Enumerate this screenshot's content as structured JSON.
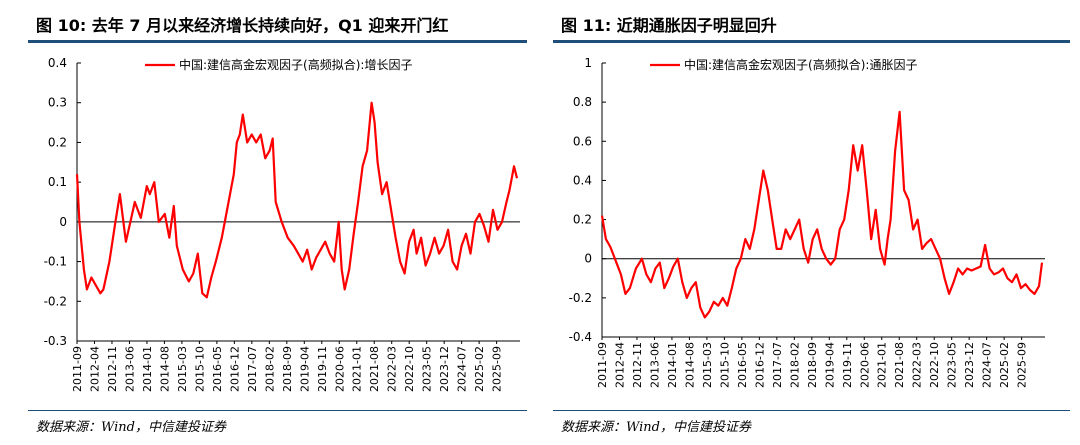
{
  "source_note": "数据来源：Wind，中信建投证券",
  "charts": [
    {
      "figure_title": "图 10: 去年 7 月以来经济增长持续向好，Q1 迎来开门红",
      "source": "数据来源：Wind，中信建投证券",
      "legend": "中国:建信高金宏观因子(高频拟合):增长因子"
    },
    {
      "figure_title": "图 11: 近期通胀因子明显回升",
      "source": "数据来源：Wind，中信建投证券",
      "legend": "中国:建信高金宏观因子(高频拟合):通胀因子"
    }
  ],
  "chart_data": [
    {
      "type": "line",
      "title": "图 10: 去年 7 月以来经济增长持续向好，Q1 迎来开门红",
      "series": [
        {
          "name": "中国:建信高金宏观因子(高频拟合):增长因子",
          "color": "#ff0000",
          "x": [
            2011.67,
            2011.75,
            2011.9,
            2012.0,
            2012.15,
            2012.3,
            2012.45,
            2012.55,
            2012.75,
            2012.95,
            2013.1,
            2013.3,
            2013.45,
            2013.6,
            2013.8,
            2014.0,
            2014.1,
            2014.25,
            2014.4,
            2014.6,
            2014.75,
            2014.9,
            2015.0,
            2015.2,
            2015.4,
            2015.55,
            2015.7,
            2015.85,
            2016.0,
            2016.15,
            2016.3,
            2016.5,
            2016.7,
            2016.9,
            2017.0,
            2017.1,
            2017.2,
            2017.35,
            2017.5,
            2017.65,
            2017.8,
            2017.95,
            2018.1,
            2018.2,
            2018.3,
            2018.5,
            2018.7,
            2018.9,
            2019.05,
            2019.2,
            2019.35,
            2019.5,
            2019.65,
            2019.8,
            2019.95,
            2020.1,
            2020.25,
            2020.4,
            2020.5,
            2020.6,
            2020.75,
            2020.9,
            2021.05,
            2021.2,
            2021.35,
            2021.5,
            2021.6,
            2021.7,
            2021.85,
            2022.0,
            2022.15,
            2022.3,
            2022.45,
            2022.6,
            2022.75,
            2022.9,
            2023.0,
            2023.15,
            2023.3,
            2023.45,
            2023.6,
            2023.75,
            2023.9,
            2024.05,
            2024.2,
            2024.35,
            2024.5,
            2024.65,
            2024.8,
            2024.95,
            2025.1,
            2025.25,
            2025.4,
            2025.55,
            2025.7,
            2025.85,
            2026.0,
            2026.1,
            2026.25,
            2026.35
          ],
          "y": [
            0.12,
            0.0,
            -0.12,
            -0.17,
            -0.14,
            -0.16,
            -0.18,
            -0.17,
            -0.1,
            0.0,
            0.07,
            -0.05,
            0.0,
            0.05,
            0.01,
            0.09,
            0.07,
            0.1,
            0.0,
            0.02,
            -0.04,
            0.04,
            -0.06,
            -0.12,
            -0.15,
            -0.13,
            -0.08,
            -0.18,
            -0.19,
            -0.14,
            -0.1,
            -0.04,
            0.04,
            0.12,
            0.2,
            0.22,
            0.27,
            0.2,
            0.22,
            0.2,
            0.22,
            0.16,
            0.18,
            0.21,
            0.05,
            0.0,
            -0.04,
            -0.06,
            -0.08,
            -0.1,
            -0.07,
            -0.12,
            -0.09,
            -0.07,
            -0.05,
            -0.08,
            -0.1,
            0.0,
            -0.12,
            -0.17,
            -0.12,
            -0.03,
            0.05,
            0.14,
            0.18,
            0.3,
            0.25,
            0.15,
            0.07,
            0.1,
            0.03,
            -0.04,
            -0.1,
            -0.13,
            -0.05,
            -0.02,
            -0.08,
            -0.04,
            -0.11,
            -0.08,
            -0.04,
            -0.08,
            -0.06,
            -0.02,
            -0.1,
            -0.12,
            -0.06,
            -0.03,
            -0.08,
            0.0,
            0.02,
            -0.01,
            -0.05,
            0.03,
            -0.02,
            0.0,
            0.05,
            0.08,
            0.14,
            0.11
          ]
        }
      ],
      "x_tick_labels": [
        "2011-09",
        "2012-04",
        "2012-11",
        "2013-06",
        "2014-01",
        "2014-08",
        "2015-03",
        "2015-10",
        "2016-05",
        "2016-12",
        "2017-07",
        "2018-02",
        "2018-09",
        "2019-04",
        "2019-11",
        "2020-06",
        "2021-01",
        "2021-08",
        "2022-03",
        "2022-10",
        "2023-05",
        "2023-12",
        "2024-07",
        "2025-02",
        "2025-09"
      ],
      "y_tick_labels": [
        "0.4",
        "0.3",
        "0.2",
        "0.1",
        "0",
        "-0.1",
        "-0.2",
        "-0.3"
      ],
      "ylim": [
        -0.3,
        0.4
      ],
      "xlim": [
        2011.67,
        2026.45
      ],
      "legend_position": "top-right"
    },
    {
      "type": "line",
      "title": "图 11: 近期通胀因子明显回升",
      "series": [
        {
          "name": "中国:建信高金宏观因子(高频拟合):通胀因子",
          "color": "#ff0000",
          "x": [
            2011.67,
            2011.8,
            2011.95,
            2012.1,
            2012.3,
            2012.45,
            2012.6,
            2012.8,
            2013.0,
            2013.15,
            2013.3,
            2013.45,
            2013.6,
            2013.75,
            2013.9,
            2014.05,
            2014.2,
            2014.35,
            2014.5,
            2014.65,
            2014.8,
            2014.95,
            2015.1,
            2015.25,
            2015.4,
            2015.55,
            2015.7,
            2015.85,
            2016.0,
            2016.15,
            2016.3,
            2016.45,
            2016.6,
            2016.75,
            2016.9,
            2017.05,
            2017.2,
            2017.35,
            2017.5,
            2017.65,
            2017.8,
            2017.95,
            2018.1,
            2018.25,
            2018.4,
            2018.55,
            2018.7,
            2018.85,
            2019.0,
            2019.15,
            2019.3,
            2019.45,
            2019.6,
            2019.75,
            2019.9,
            2020.05,
            2020.2,
            2020.35,
            2020.5,
            2020.65,
            2020.8,
            2020.95,
            2021.1,
            2021.2,
            2021.3,
            2021.45,
            2021.6,
            2021.75,
            2021.9,
            2022.05,
            2022.2,
            2022.35,
            2022.5,
            2022.65,
            2022.8,
            2022.95,
            2023.1,
            2023.25,
            2023.4,
            2023.55,
            2023.7,
            2023.85,
            2024.0,
            2024.15,
            2024.3,
            2024.45,
            2024.6,
            2024.75,
            2024.9,
            2025.05,
            2025.2,
            2025.35,
            2025.5,
            2025.65,
            2025.8,
            2025.95,
            2026.1,
            2026.25,
            2026.35
          ],
          "y": [
            0.22,
            0.1,
            0.06,
            0.0,
            -0.08,
            -0.18,
            -0.15,
            -0.05,
            0.0,
            -0.08,
            -0.12,
            -0.05,
            -0.02,
            -0.15,
            -0.1,
            -0.04,
            0.0,
            -0.12,
            -0.2,
            -0.15,
            -0.12,
            -0.25,
            -0.3,
            -0.27,
            -0.22,
            -0.24,
            -0.2,
            -0.24,
            -0.15,
            -0.05,
            0.0,
            0.1,
            0.05,
            0.15,
            0.3,
            0.45,
            0.35,
            0.2,
            0.05,
            0.05,
            0.15,
            0.1,
            0.15,
            0.2,
            0.05,
            -0.02,
            0.1,
            0.15,
            0.05,
            0.0,
            -0.03,
            0.0,
            0.15,
            0.2,
            0.35,
            0.58,
            0.45,
            0.58,
            0.35,
            0.1,
            0.25,
            0.05,
            -0.03,
            0.1,
            0.2,
            0.55,
            0.75,
            0.35,
            0.3,
            0.15,
            0.2,
            0.05,
            0.08,
            0.1,
            0.05,
            0.0,
            -0.1,
            -0.18,
            -0.12,
            -0.05,
            -0.08,
            -0.05,
            -0.06,
            -0.05,
            -0.04,
            0.07,
            -0.05,
            -0.08,
            -0.07,
            -0.05,
            -0.1,
            -0.12,
            -0.08,
            -0.15,
            -0.13,
            -0.16,
            -0.18,
            -0.14,
            -0.02
          ]
        }
      ],
      "x_tick_labels": [
        "2011-09",
        "2012-04",
        "2012-11",
        "2013-06",
        "2014-01",
        "2014-08",
        "2015-03",
        "2015-10",
        "2016-05",
        "2016-12",
        "2017-07",
        "2018-02",
        "2018-09",
        "2019-04",
        "2019-11",
        "2020-06",
        "2021-01",
        "2021-08",
        "2022-03",
        "2022-10",
        "2023-05",
        "2023-12",
        "2024-07",
        "2025-02",
        "2025-09"
      ],
      "y_tick_labels": [
        "1",
        "0.8",
        "0.6",
        "0.4",
        "0.2",
        "0",
        "-0.2",
        "-0.4"
      ],
      "ylim": [
        -0.4,
        1.0
      ],
      "xlim": [
        2011.67,
        2026.45
      ],
      "legend_position": "top-right"
    }
  ]
}
